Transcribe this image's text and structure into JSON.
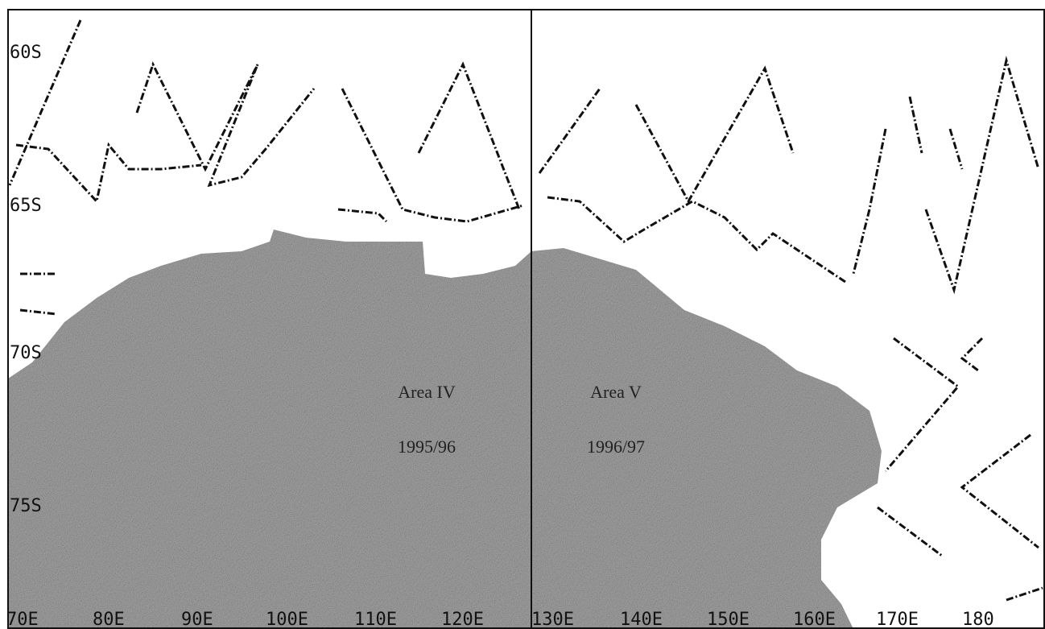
{
  "map": {
    "lat_labels": [
      "60S",
      "65S",
      "70S",
      "75S"
    ],
    "lon_labels": [
      "70E",
      "80E",
      "90E",
      "100E",
      "110E",
      "120E",
      "130E",
      "140E",
      "150E",
      "160E",
      "170E",
      "180"
    ],
    "panels": [
      {
        "area": "Area IV",
        "season": "1995/96"
      },
      {
        "area": "Area V",
        "season": "1996/97"
      }
    ]
  }
}
